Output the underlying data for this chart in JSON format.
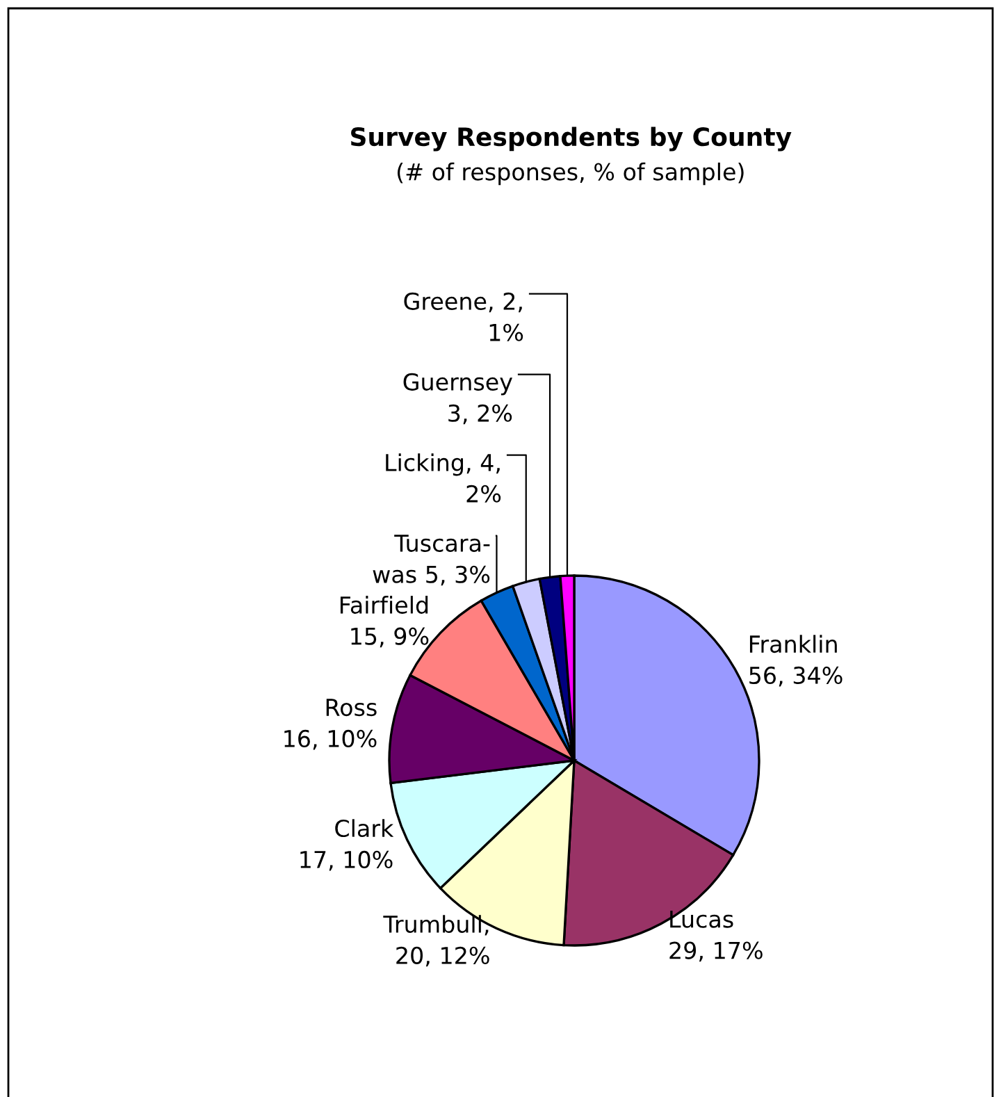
{
  "chart_data": {
    "type": "pie",
    "title": "Survey Respondents by County",
    "subtitle": "(# of responses, % of sample)",
    "categories": [
      "Franklin\n56, 34%",
      "Lucas\n29, 17%",
      "Trumbull,\n20, 12%",
      "Clark\n17, 10%",
      "Ross\n16, 10%",
      "Fairfield\n15, 9%",
      "Tuscara-\nwas 5, 3%",
      "Licking, 4,\n2%",
      "Guernsey\n3, 2%",
      "Greene, 2,\n1%"
    ],
    "values": [
      56,
      29,
      20,
      17,
      16,
      15,
      5,
      4,
      3,
      2
    ],
    "colors": [
      "#9999ff",
      "#993366",
      "#ffffcc",
      "#ccffff",
      "#660066",
      "#ff8080",
      "#0066cc",
      "#ccccff",
      "#000080",
      "#ff00ff"
    ],
    "legend": false
  }
}
